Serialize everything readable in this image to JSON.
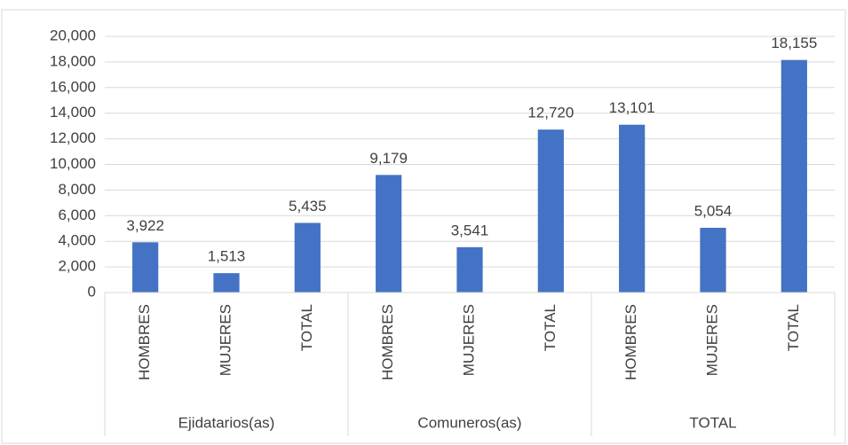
{
  "chart_data": {
    "type": "bar",
    "categories": [
      "HOMBRES",
      "MUJERES",
      "TOTAL",
      "HOMBRES",
      "MUJERES",
      "TOTAL",
      "HOMBRES",
      "MUJERES",
      "TOTAL"
    ],
    "groups": [
      "Ejidatarios(as)",
      "Comuneros(as)",
      "TOTAL"
    ],
    "values": [
      3922,
      1513,
      5435,
      9179,
      3541,
      12720,
      13101,
      5054,
      18155
    ],
    "value_labels": [
      "3,922",
      "1,513",
      "5,435",
      "9,179",
      "3,541",
      "12,720",
      "13,101",
      "5,054",
      "18,155"
    ],
    "color": "#4472c4",
    "ylim": [
      0,
      20000
    ],
    "yticks": [
      0,
      {
        "value": 2000,
        "label": "2,000"
      },
      {
        "value": 4000,
        "label": "4,000"
      },
      {
        "value": 6000,
        "label": "6,000"
      },
      {
        "value": 8000,
        "label": "8,000"
      },
      {
        "value": 10000,
        "label": "10,000"
      },
      {
        "value": 12000,
        "label": "12,000"
      },
      {
        "value": 14000,
        "label": "14,000"
      },
      {
        "value": 16000,
        "label": "16,000"
      },
      {
        "value": 18000,
        "label": "18,000"
      },
      {
        "value": 20000,
        "label": "20,000"
      }
    ],
    "grid": true
  }
}
